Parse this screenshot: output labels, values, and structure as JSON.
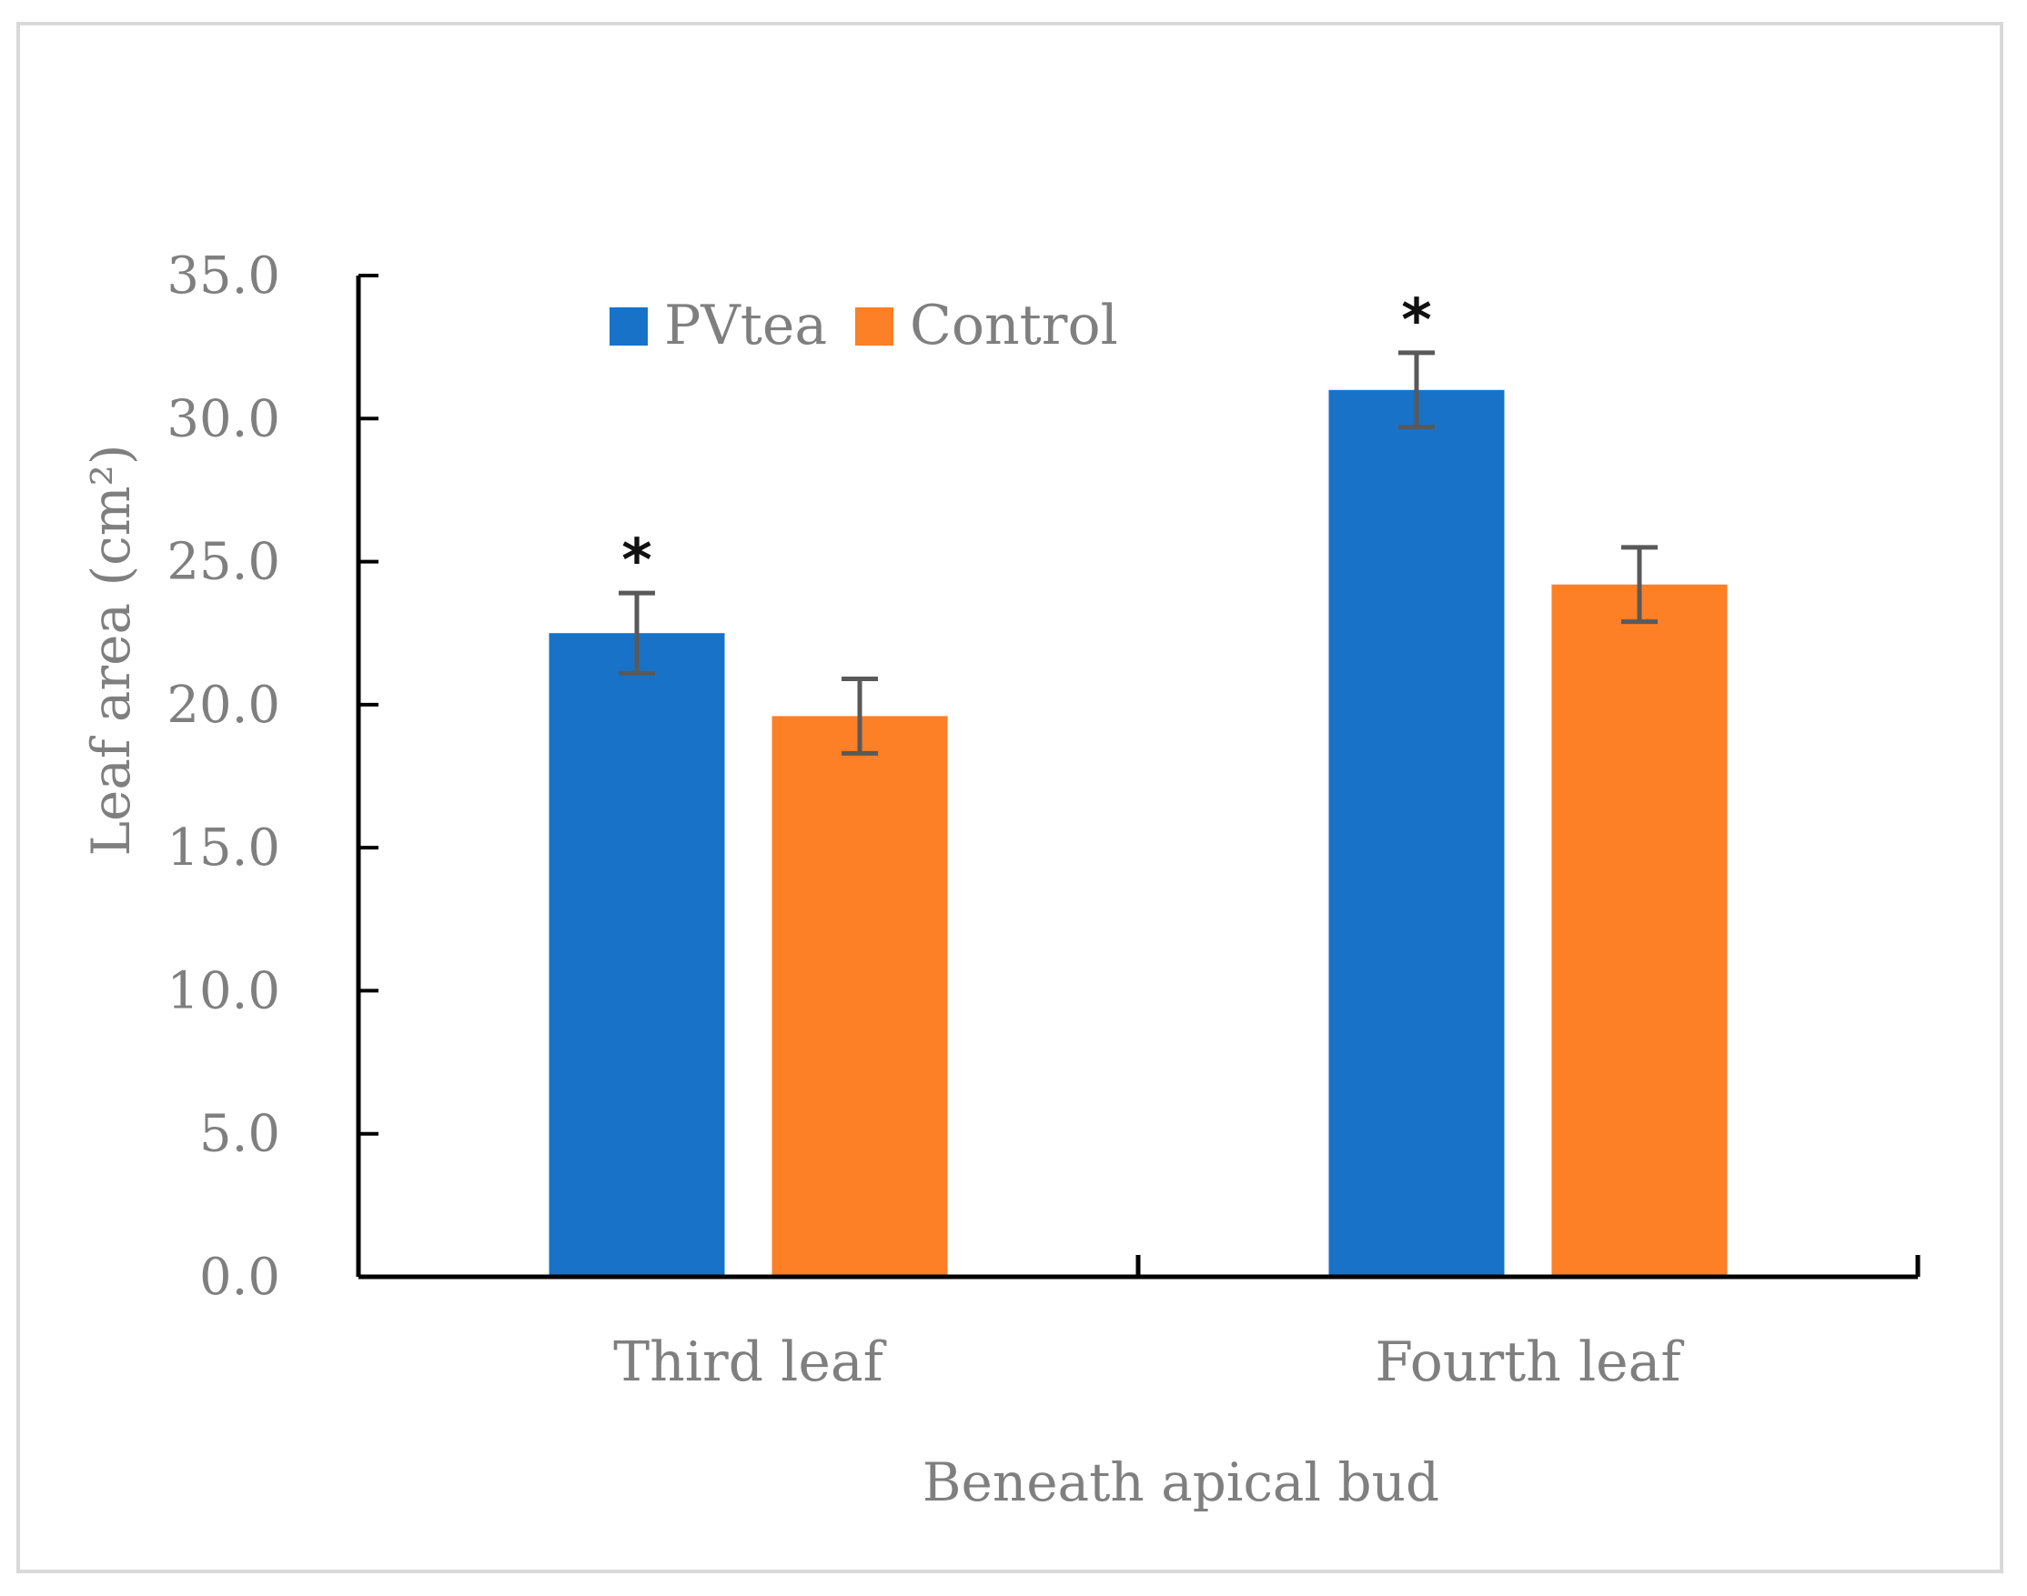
{
  "chart_data": {
    "type": "bar",
    "categories": [
      "Third leaf",
      "Fourth leaf"
    ],
    "series": [
      {
        "name": "PVtea",
        "values": [
          22.5,
          31.0
        ],
        "errors": [
          1.4,
          1.3
        ],
        "significance": [
          "*",
          "*"
        ],
        "color": "#1872c8"
      },
      {
        "name": "Control",
        "values": [
          19.6,
          24.2
        ],
        "errors": [
          1.3,
          1.3
        ],
        "significance": [
          "",
          ""
        ],
        "color": "#fd7f26"
      }
    ],
    "xlabel": "Beneath apical bud",
    "ylabel": "Leaf area (cm²)",
    "ylim": [
      0,
      35
    ],
    "yticks": [
      "0.0",
      "5.0",
      "10.0",
      "15.0",
      "20.0",
      "25.0",
      "30.0",
      "35.0"
    ],
    "ytick_values": [
      0,
      5,
      10,
      15,
      20,
      25,
      30,
      35
    ],
    "grid": false,
    "legend_position": "top-center",
    "error_bar_color": "#595959",
    "axis_color": "#000000"
  }
}
